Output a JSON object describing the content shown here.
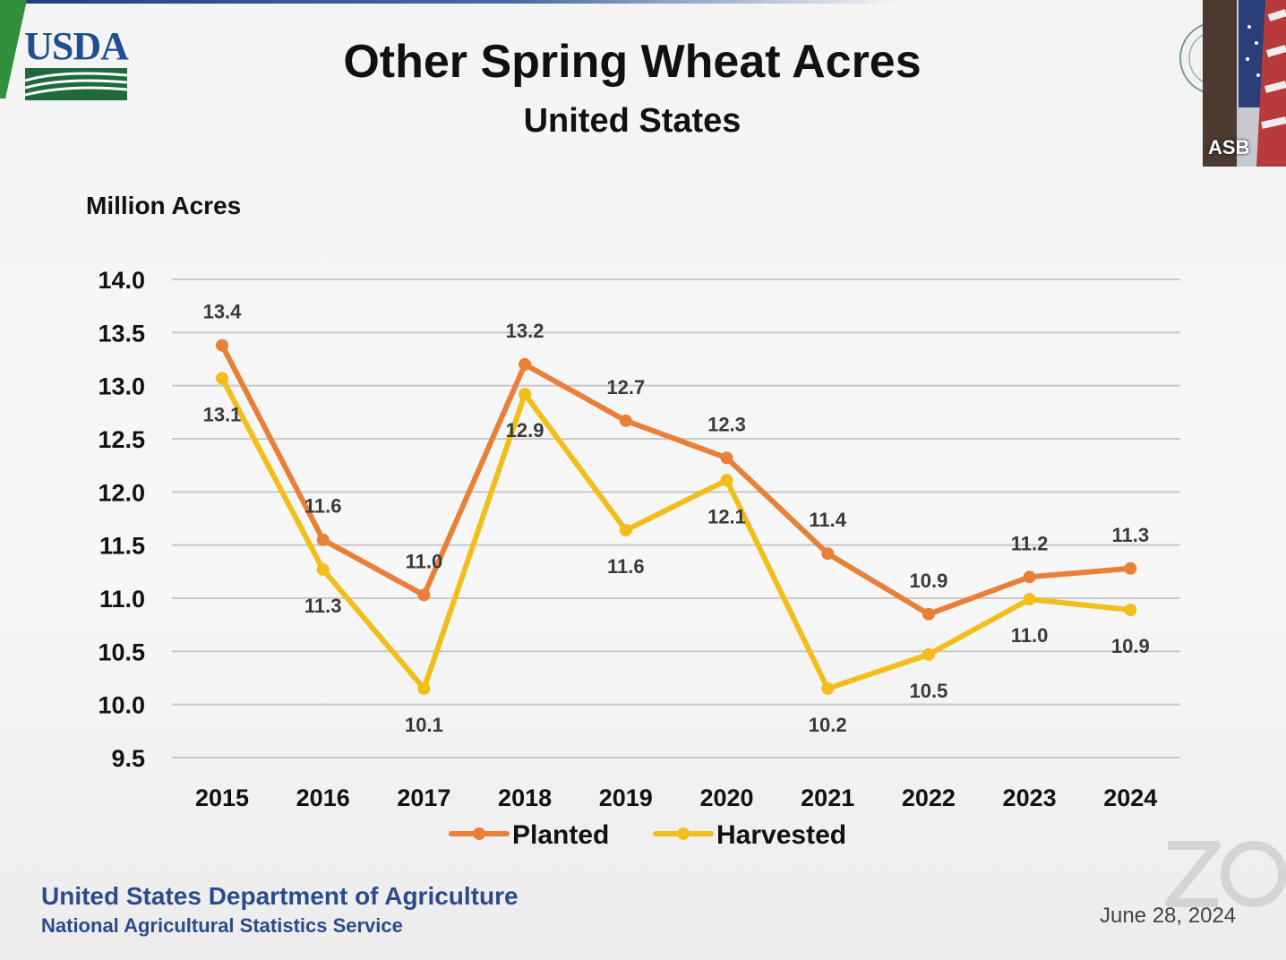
{
  "header": {
    "logo_text": "USDA",
    "title": "Other Spring Wheat Acres",
    "subtitle": "United States"
  },
  "video": {
    "name": "ASB"
  },
  "footer": {
    "org": "United States Department of Agriculture",
    "agency": "National Agricultural Statistics Service",
    "date": "June 28, 2024"
  },
  "colors": {
    "planted": "#E8803A",
    "harvested": "#F2BE1A",
    "grid": "#c8c8c8",
    "footer": "#2a4b8d"
  },
  "chart_data": {
    "type": "line",
    "title": "Other Spring Wheat Acres",
    "subtitle": "United States",
    "ylabel": "Million Acres",
    "xlabel": "",
    "ylim": [
      9.5,
      14.0
    ],
    "yticks": [
      "9.5",
      "10.0",
      "10.5",
      "11.0",
      "11.5",
      "12.0",
      "12.5",
      "13.0",
      "13.5",
      "14.0"
    ],
    "categories": [
      "2015",
      "2016",
      "2017",
      "2018",
      "2019",
      "2020",
      "2021",
      "2022",
      "2023",
      "2024"
    ],
    "legend_position": "bottom",
    "series": [
      {
        "name": "Planted",
        "values": [
          13.38,
          11.55,
          11.03,
          13.2,
          12.67,
          12.32,
          11.42,
          10.85,
          11.2,
          11.28
        ],
        "labels": [
          "13.4",
          "11.6",
          "11.0",
          "13.2",
          "12.7",
          "12.3",
          "11.4",
          "10.9",
          "11.2",
          "11.3"
        ]
      },
      {
        "name": "Harvested",
        "values": [
          13.07,
          11.27,
          10.15,
          12.92,
          11.64,
          12.11,
          10.15,
          10.47,
          10.99,
          10.89
        ],
        "labels": [
          "13.1",
          "11.3",
          "10.1",
          "12.9",
          "11.6",
          "12.1",
          "10.2",
          "10.5",
          "11.0",
          "10.9"
        ]
      }
    ]
  }
}
